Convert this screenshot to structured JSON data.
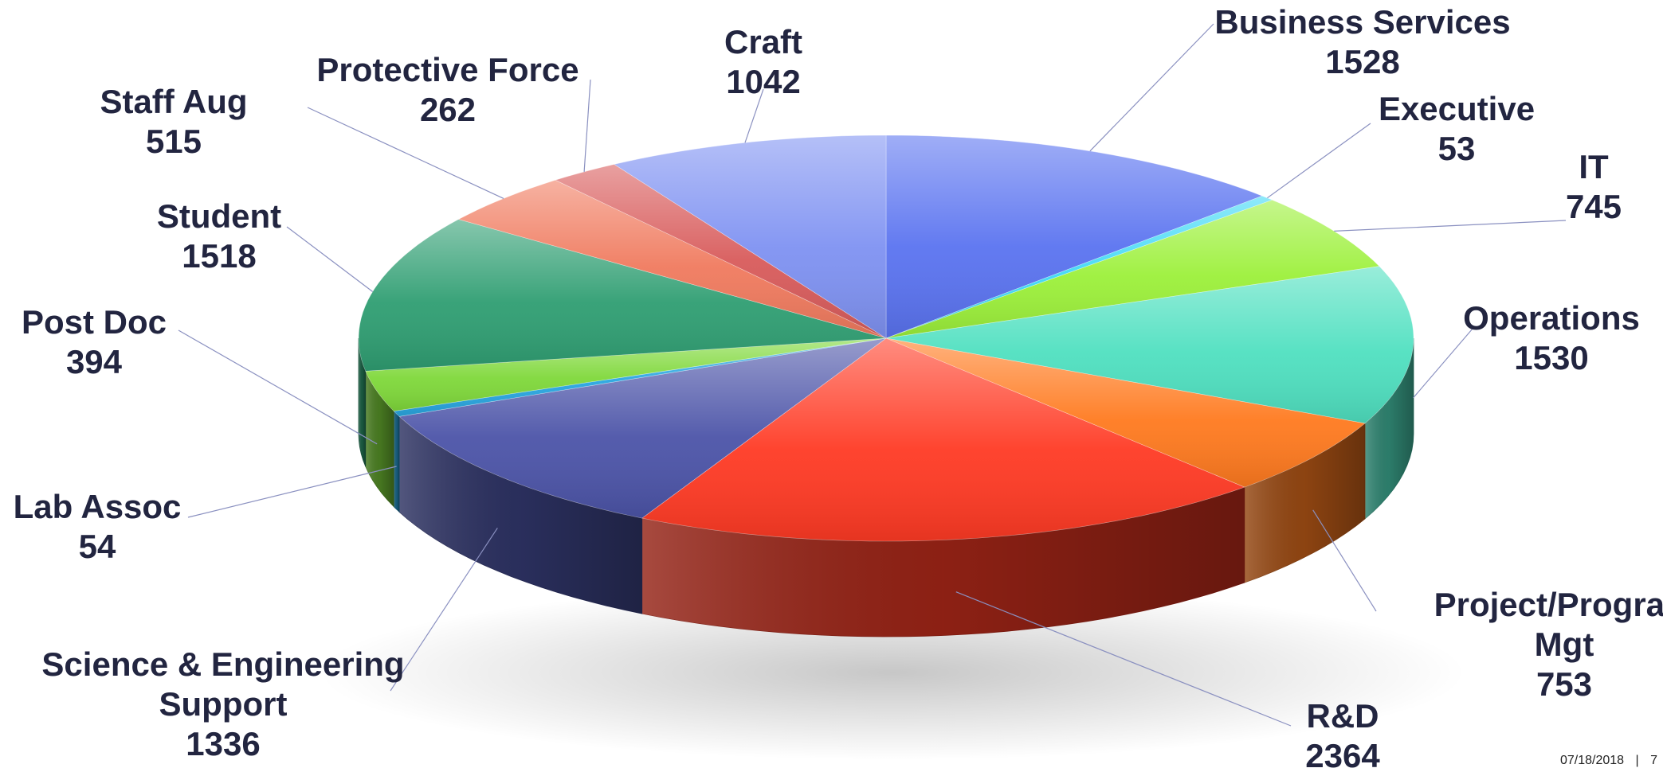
{
  "chart_data": {
    "type": "pie",
    "style": "3d-exploded-perspective",
    "title": "",
    "legend": "none",
    "slices": [
      {
        "label": "Business Services",
        "value": 1528,
        "color": "#5a73f0"
      },
      {
        "label": "Executive",
        "value": 53,
        "color": "#3fd9f5"
      },
      {
        "label": "IT",
        "value": 745,
        "color": "#9cf03a"
      },
      {
        "label": "Operations",
        "value": 1530,
        "color": "#4fe0c0"
      },
      {
        "label": "Project/Program Mgt",
        "value": 753,
        "color": "#ff7a1f"
      },
      {
        "label": "R&D",
        "value": 2364,
        "color": "#ff3a24"
      },
      {
        "label": "Science & Engineering Support",
        "value": 1336,
        "color": "#4c54a8"
      },
      {
        "label": "Lab Assoc",
        "value": 54,
        "color": "#29a6e0"
      },
      {
        "label": "Post Doc",
        "value": 394,
        "color": "#7fd83a"
      },
      {
        "label": "Student",
        "value": 1518,
        "color": "#2f9e72"
      },
      {
        "label": "Staff Aug",
        "value": 515,
        "color": "#f07a5e"
      },
      {
        "label": "Protective Force",
        "value": 262,
        "color": "#d85b5b"
      },
      {
        "label": "Craft",
        "value": 1042,
        "color": "#7f92f2"
      }
    ]
  },
  "labels": [
    {
      "name": "business-services",
      "lines": [
        "Business Services",
        "1528"
      ]
    },
    {
      "name": "executive",
      "lines": [
        "Executive",
        "53"
      ]
    },
    {
      "name": "it",
      "lines": [
        "IT",
        "745"
      ]
    },
    {
      "name": "operations",
      "lines": [
        "Operations",
        "1530"
      ]
    },
    {
      "name": "project-program-mgt",
      "lines": [
        "Project/Program",
        "Mgt",
        "753"
      ]
    },
    {
      "name": "r-and-d",
      "lines": [
        "R&D",
        "2364"
      ]
    },
    {
      "name": "science-engineering-support",
      "lines": [
        "Science & Engineering",
        "Support",
        "1336"
      ]
    },
    {
      "name": "lab-assoc",
      "lines": [
        "Lab Assoc",
        "54"
      ]
    },
    {
      "name": "post-doc",
      "lines": [
        "Post Doc",
        "394"
      ]
    },
    {
      "name": "student",
      "lines": [
        "Student",
        "1518"
      ]
    },
    {
      "name": "staff-aug",
      "lines": [
        "Staff Aug",
        "515"
      ]
    },
    {
      "name": "protective-force",
      "lines": [
        "Protective Force",
        "262"
      ]
    },
    {
      "name": "craft",
      "lines": [
        "Craft",
        "1042"
      ]
    }
  ],
  "footer": {
    "date": "07/18/2018",
    "separator": "|",
    "page": "7"
  }
}
